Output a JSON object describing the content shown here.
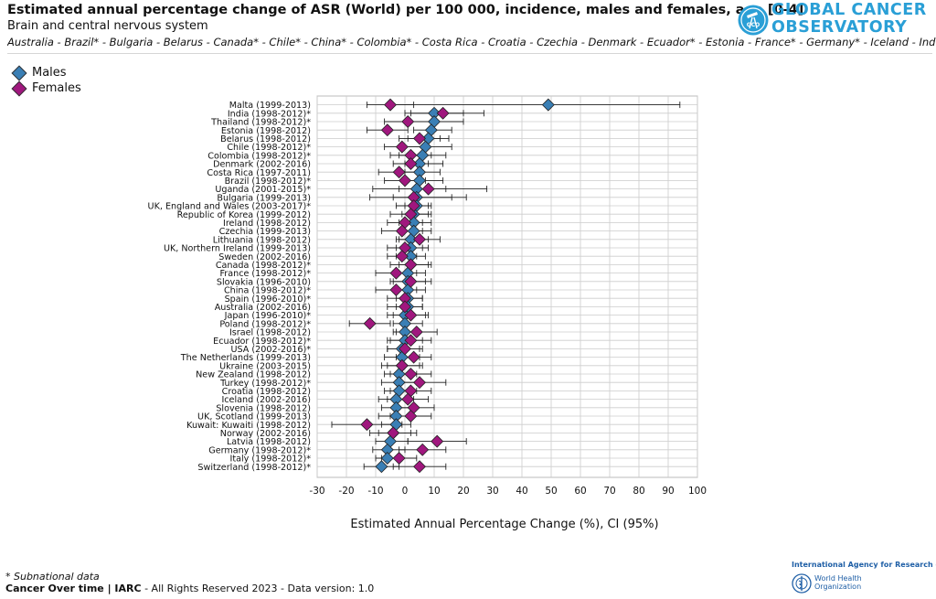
{
  "header": {
    "title": "Estimated annual percentage change of ASR (World) per 100 000, incidence, males and females, age [0-4]",
    "subtitle": "Brain and central nervous system",
    "countries": "Australia - Brazil* - Bulgaria - Belarus - Canada* - Chile* - China* - Colombia* - Costa Rica - Croatia - Czechia - Denmark - Ecuador* - Estonia - France* - Germany* - Iceland - India*",
    "logo_line1": "GLOBAL CANCER",
    "logo_line2": "OBSERVATORY",
    "logo_badge": "GCO"
  },
  "colors": {
    "males": "#3a7fb5",
    "females": "#a0177e",
    "ci_line": "#222222",
    "grid": "#cccccc",
    "brand": "#2a9fd6"
  },
  "legend": {
    "males": "Males",
    "females": "Females"
  },
  "footer": {
    "footnote": "* Subnational data",
    "credit_bold": "Cancer Over time | IARC",
    "credit_rest": " - All Rights Reserved 2023 - Data version: 1.0",
    "iarc": "International Agency for Research on Cancer",
    "who_line1": "World Health",
    "who_line2": "Organization"
  },
  "chart_data": {
    "type": "scatter",
    "title": "",
    "xlabel": "Estimated Annual Percentage Change (%), CI (95%)",
    "ylabel": "",
    "xlim": [
      -30,
      100
    ],
    "xticks": [
      -30,
      -20,
      -10,
      0,
      10,
      20,
      30,
      40,
      50,
      60,
      70,
      80,
      90,
      100
    ],
    "grid": true,
    "legend_position": "top-left",
    "categories": [
      "Malta (1999-2013)",
      "India (1998-2012)*",
      "Thailand (1998-2012)*",
      "Estonia (1998-2012)",
      "Belarus (1998-2012)",
      "Chile (1998-2012)*",
      "Colombia (1998-2012)*",
      "Denmark (2002-2016)",
      "Costa Rica (1997-2011)",
      "Brazil (1998-2012)*",
      "Uganda (2001-2015)*",
      "Bulgaria (1999-2013)",
      "UK, England and Wales (2003-2017)*",
      "Republic of Korea (1999-2012)",
      "Ireland (1998-2012)",
      "Czechia (1999-2013)",
      "Lithuania (1998-2012)",
      "UK, Northern Ireland (1999-2013)",
      "Sweden (2002-2016)",
      "Canada (1998-2012)*",
      "France (1998-2012)*",
      "Slovakia (1996-2010)",
      "China (1998-2012)*",
      "Spain (1996-2010)*",
      "Australia (2002-2016)",
      "Japan (1996-2010)*",
      "Poland (1998-2012)*",
      "Israel (1998-2012)",
      "Ecuador (1998-2012)*",
      "USA (2002-2016)*",
      "The Netherlands (1999-2013)",
      "Ukraine (2003-2015)",
      "New Zealand (1998-2012)",
      "Turkey (1998-2012)*",
      "Croatia (1998-2012)",
      "Iceland (2002-2016)",
      "Slovenia (1998-2012)",
      "UK, Scotland (1999-2013)",
      "Kuwait: Kuwaiti (1998-2012)",
      "Norway (2002-2016)",
      "Latvia (1998-2012)",
      "Germany (1998-2012)*",
      "Italy (1998-2012)*",
      "Switzerland (1998-2012)*"
    ],
    "series": [
      {
        "name": "Males",
        "values": [
          49,
          10,
          10,
          9,
          8,
          7,
          6,
          5,
          5,
          5,
          4,
          4,
          4,
          3,
          3,
          3,
          2,
          2,
          2,
          2,
          1,
          1,
          1,
          1,
          1,
          0,
          0,
          0,
          0,
          -1,
          -1,
          -1,
          -2,
          -2,
          -2,
          -3,
          -3,
          -3,
          -3,
          -4,
          -5,
          -6,
          -6,
          -8
        ],
        "ci_low": [
          -5,
          2,
          2,
          3,
          1,
          -1,
          -2,
          0,
          0,
          -1,
          -2,
          -4,
          0,
          -1,
          -2,
          -2,
          -3,
          -3,
          -3,
          -2,
          -4,
          -4,
          -4,
          -3,
          -3,
          -6,
          -4,
          -4,
          -6,
          -6,
          -7,
          -6,
          -7,
          -8,
          -7,
          -9,
          -8,
          -9,
          -8,
          -9,
          -10,
          -11,
          -10,
          -14
        ],
        "ci_high": [
          94,
          20,
          20,
          16,
          15,
          16,
          14,
          13,
          12,
          13,
          14,
          16,
          8,
          8,
          9,
          9,
          8,
          8,
          7,
          8,
          7,
          7,
          7,
          6,
          6,
          7,
          6,
          5,
          6,
          5,
          5,
          5,
          4,
          4,
          4,
          3,
          3,
          3,
          2,
          2,
          1,
          0,
          -1,
          -2
        ]
      },
      {
        "name": "Females",
        "values": [
          -5,
          13,
          1,
          -6,
          5,
          -1,
          2,
          2,
          -2,
          0,
          8,
          3,
          3,
          2,
          0,
          -1,
          5,
          0,
          -1,
          2,
          -3,
          2,
          -3,
          0,
          0,
          2,
          -12,
          4,
          2,
          0,
          3,
          -1,
          2,
          5,
          2,
          1,
          3,
          2,
          -13,
          -4,
          11,
          6,
          -2,
          5
        ],
        "ci_low": [
          -13,
          0,
          -7,
          -13,
          -2,
          -7,
          -5,
          -4,
          -9,
          -7,
          -11,
          -12,
          -3,
          -5,
          -6,
          -8,
          -2,
          -6,
          -6,
          -5,
          -10,
          -5,
          -10,
          -6,
          -6,
          -4,
          -19,
          -3,
          -5,
          -6,
          -3,
          -8,
          -5,
          -3,
          -5,
          -6,
          -4,
          -5,
          -25,
          -12,
          1,
          -2,
          -8,
          -4
        ],
        "ci_high": [
          3,
          27,
          9,
          1,
          12,
          6,
          9,
          8,
          5,
          7,
          28,
          21,
          9,
          9,
          6,
          6,
          12,
          6,
          4,
          9,
          4,
          9,
          4,
          6,
          6,
          8,
          -5,
          11,
          9,
          6,
          9,
          6,
          9,
          14,
          9,
          8,
          10,
          9,
          -1,
          4,
          21,
          14,
          4,
          14
        ]
      }
    ]
  }
}
